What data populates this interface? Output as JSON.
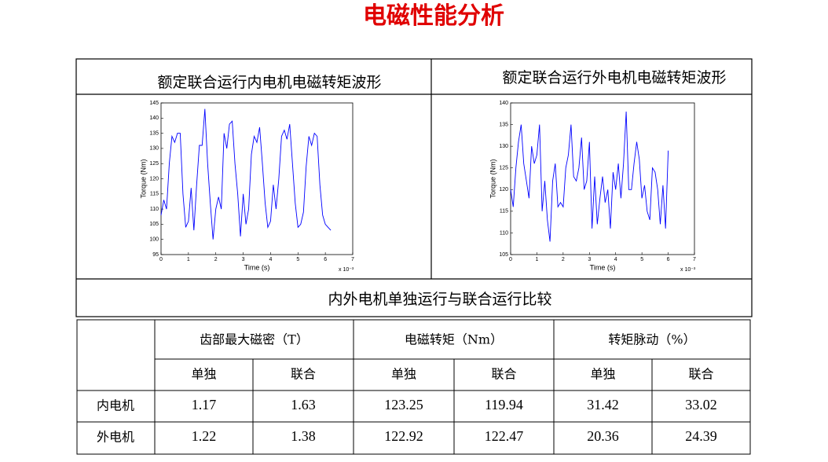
{
  "title": "电磁性能分析",
  "captions": [
    "额定联合运行内电机电磁转矩波形",
    "额定联合运行外电机电磁转矩波形",
    "内外电机单独运行与联合运行比较"
  ],
  "chart_data": [
    {
      "type": "line",
      "xlabel": "Time (s)",
      "ylabel": "Torque (Nm)",
      "x_scale": "x 10⁻³",
      "color": "#0000ff",
      "x": [
        0,
        0.1,
        0.2,
        0.3,
        0.4,
        0.5,
        0.6,
        0.7,
        0.8,
        0.9,
        1.0,
        1.1,
        1.2,
        1.3,
        1.4,
        1.5,
        1.6,
        1.7,
        1.8,
        1.9,
        2.0,
        2.1,
        2.2,
        2.3,
        2.4,
        2.5,
        2.6,
        2.7,
        2.8,
        2.9,
        3.0,
        3.1,
        3.2,
        3.3,
        3.4,
        3.5,
        3.6,
        3.7,
        3.8,
        3.9,
        4.0,
        4.1,
        4.2,
        4.3,
        4.4,
        4.5,
        4.6,
        4.7,
        4.8,
        4.9,
        5.0,
        5.1,
        5.2,
        5.3,
        5.4,
        5.5,
        5.6,
        5.7,
        5.8,
        5.9,
        6.0,
        6.1,
        6.2
      ],
      "values": [
        108,
        113,
        110,
        125,
        134,
        132,
        135,
        135,
        115,
        104,
        106,
        117,
        103,
        118,
        131,
        131,
        143,
        125,
        112,
        100,
        110,
        114,
        110,
        135,
        130,
        138,
        139,
        125,
        115,
        101,
        115,
        105,
        110,
        128,
        134,
        132,
        137,
        125,
        112,
        104,
        106,
        118,
        110,
        120,
        134,
        136,
        133,
        138,
        125,
        112,
        104,
        105,
        109,
        124,
        134,
        131,
        135,
        134,
        118,
        108,
        105,
        104,
        103
      ],
      "xlim": [
        0,
        7
      ],
      "xticks": [
        0,
        1,
        2,
        3,
        4,
        5,
        6,
        7
      ],
      "ylim": [
        95,
        145
      ],
      "yticks": [
        95,
        100,
        105,
        110,
        115,
        120,
        125,
        130,
        135,
        140,
        145
      ]
    },
    {
      "type": "line",
      "xlabel": "Time (s)",
      "ylabel": "Torque (Nm)",
      "x_scale": "x 10⁻³",
      "color": "#0000ff",
      "x": [
        0,
        0.1,
        0.2,
        0.3,
        0.4,
        0.5,
        0.6,
        0.7,
        0.8,
        0.9,
        1.0,
        1.1,
        1.2,
        1.3,
        1.4,
        1.5,
        1.6,
        1.7,
        1.8,
        1.9,
        2.0,
        2.1,
        2.2,
        2.3,
        2.4,
        2.5,
        2.6,
        2.7,
        2.8,
        2.9,
        3.0,
        3.1,
        3.2,
        3.3,
        3.4,
        3.5,
        3.6,
        3.7,
        3.8,
        3.9,
        4.0,
        4.1,
        4.2,
        4.3,
        4.4,
        4.5,
        4.6,
        4.7,
        4.8,
        4.9,
        5.0,
        5.1,
        5.2,
        5.3,
        5.4,
        5.5,
        5.6,
        5.7,
        5.8,
        5.9,
        6.0
      ],
      "values": [
        120,
        116,
        125,
        131,
        135,
        126,
        122,
        118,
        130,
        126,
        128,
        135,
        115,
        122,
        113,
        108,
        122,
        126,
        116,
        117,
        116,
        125,
        128,
        135,
        123,
        122,
        125,
        132,
        120,
        122,
        131,
        111,
        123,
        112,
        118,
        123,
        117,
        120,
        111,
        124,
        120,
        126,
        118,
        126,
        138,
        120,
        120,
        126,
        131,
        127,
        118,
        121,
        115,
        113,
        125,
        124,
        120,
        112,
        121,
        111,
        129
      ],
      "xlim": [
        0,
        7
      ],
      "xticks": [
        0,
        1,
        2,
        3,
        4,
        5,
        6,
        7
      ],
      "ylim": [
        105,
        140
      ],
      "yticks": [
        105,
        110,
        115,
        120,
        125,
        130,
        135,
        140
      ]
    }
  ],
  "table": {
    "groups": [
      "齿部最大磁密（T）",
      "电磁转矩（Nm）",
      "转矩脉动（%）"
    ],
    "subheaders": [
      "单独",
      "联合",
      "单独",
      "联合",
      "单独",
      "联合"
    ],
    "rows": [
      {
        "label": "内电机",
        "values": [
          1.17,
          1.63,
          123.25,
          119.94,
          31.42,
          33.02
        ]
      },
      {
        "label": "外电机",
        "values": [
          1.22,
          1.38,
          122.92,
          122.47,
          20.36,
          24.39
        ]
      }
    ]
  }
}
